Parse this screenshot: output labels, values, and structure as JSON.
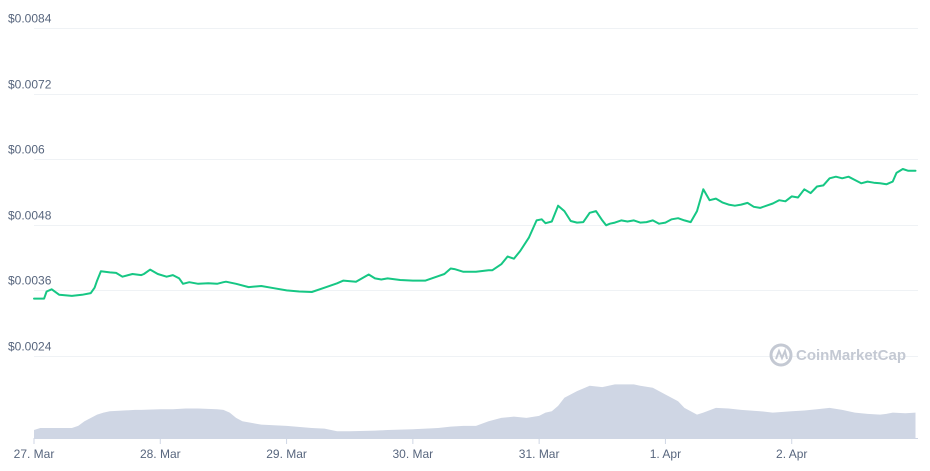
{
  "watermark": {
    "text": "CoinMarketCap"
  },
  "chart_data": {
    "type": "line",
    "title": "",
    "xlabel": "",
    "ylabel": "",
    "y_ticks": [
      0.0024,
      0.0036,
      0.0048,
      0.006,
      0.0072,
      0.0084
    ],
    "y_tick_labels": [
      "$0.0024",
      "$0.0036",
      "$0.0048",
      "$0.006",
      "$0.0072",
      "$0.0084"
    ],
    "ylim": [
      0.0024,
      0.0084
    ],
    "x_ticks": [
      "27. Mar",
      "28. Mar",
      "29. Mar",
      "30. Mar",
      "31. Mar",
      "1. Apr",
      "2. Apr"
    ],
    "xlim": [
      0,
      7.0
    ],
    "grid": true,
    "legend": "none",
    "colors": {
      "line": "#16c784",
      "volume": "#cfd6e4",
      "grid": "#eff2f5",
      "axis_text": "#58667e"
    },
    "series": [
      {
        "x": [
          0,
          0.08,
          0.1,
          0.14,
          0.2,
          0.3,
          0.38,
          0.45,
          0.48,
          0.5,
          0.53,
          0.6,
          0.65,
          0.7,
          0.78,
          0.85,
          0.87,
          0.92,
          0.98,
          1.05,
          1.1,
          1.15,
          1.18,
          1.23,
          1.3,
          1.38,
          1.45,
          1.5,
          1.52,
          1.6,
          1.7,
          1.8,
          1.9,
          2.0,
          2.1,
          2.2,
          2.3,
          2.4,
          2.45,
          2.55,
          2.65,
          2.7,
          2.75,
          2.8,
          2.9,
          3.0,
          3.1,
          3.2,
          3.25,
          3.3,
          3.33,
          3.4,
          3.5,
          3.6,
          3.63,
          3.7,
          3.75,
          3.8,
          3.85,
          3.92,
          3.98,
          4.02,
          4.05,
          4.1,
          4.15,
          4.2,
          4.25,
          4.3,
          4.35,
          4.4,
          4.45,
          4.5,
          4.53,
          4.56,
          4.6,
          4.65,
          4.7,
          4.75,
          4.8,
          4.85,
          4.9,
          4.95,
          5.0,
          5.05,
          5.1,
          5.15,
          5.2,
          5.25,
          5.3,
          5.35,
          5.4,
          5.45,
          5.5,
          5.55,
          5.6,
          5.65,
          5.7,
          5.75,
          5.8,
          5.85,
          5.9,
          5.95,
          6.0,
          6.05,
          6.1,
          6.15,
          6.2,
          6.25,
          6.3,
          6.35,
          6.4,
          6.45,
          6.5,
          6.55,
          6.6,
          6.65,
          6.7,
          6.75,
          6.8,
          6.83,
          6.88,
          6.92,
          6.98
        ],
        "values": [
          0.00345,
          0.00345,
          0.00358,
          0.00362,
          0.00352,
          0.0035,
          0.00352,
          0.00355,
          0.00365,
          0.00378,
          0.00395,
          0.00393,
          0.00392,
          0.00385,
          0.0039,
          0.00388,
          0.0039,
          0.00398,
          0.0039,
          0.00385,
          0.00388,
          0.00382,
          0.00372,
          0.00375,
          0.00372,
          0.00373,
          0.00372,
          0.00375,
          0.00376,
          0.00372,
          0.00366,
          0.00368,
          0.00364,
          0.0036,
          0.00358,
          0.00357,
          0.00365,
          0.00373,
          0.00378,
          0.00376,
          0.00389,
          0.00382,
          0.0038,
          0.00382,
          0.00379,
          0.00378,
          0.00378,
          0.00386,
          0.0039,
          0.004,
          0.00399,
          0.00394,
          0.00394,
          0.00397,
          0.00397,
          0.00408,
          0.00422,
          0.00418,
          0.00432,
          0.00457,
          0.00488,
          0.0049,
          0.00483,
          0.00486,
          0.00515,
          0.00505,
          0.00487,
          0.00484,
          0.00485,
          0.00502,
          0.00505,
          0.00488,
          0.00479,
          0.00482,
          0.00484,
          0.00488,
          0.00486,
          0.00488,
          0.00484,
          0.00485,
          0.00488,
          0.00482,
          0.00484,
          0.0049,
          0.00492,
          0.00488,
          0.00485,
          0.00505,
          0.00545,
          0.00525,
          0.00528,
          0.00521,
          0.00517,
          0.00515,
          0.00517,
          0.0052,
          0.00513,
          0.00511,
          0.00515,
          0.00519,
          0.00525,
          0.00523,
          0.00532,
          0.0053,
          0.00545,
          0.00538,
          0.0055,
          0.00552,
          0.00565,
          0.00568,
          0.00565,
          0.00568,
          0.00562,
          0.00556,
          0.00559,
          0.00557,
          0.00556,
          0.00554,
          0.00559,
          0.00575,
          0.00582,
          0.00579,
          0.00579
        ]
      }
    ],
    "volume": {
      "x": [
        0,
        0.05,
        0.1,
        0.3,
        0.35,
        0.4,
        0.5,
        0.55,
        0.6,
        0.8,
        0.85,
        1.0,
        1.05,
        1.1,
        1.2,
        1.3,
        1.45,
        1.5,
        1.55,
        1.6,
        1.65,
        1.8,
        2.0,
        2.2,
        2.3,
        2.4,
        2.5,
        2.7,
        2.8,
        3.0,
        3.2,
        3.3,
        3.4,
        3.5,
        3.6,
        3.7,
        3.8,
        3.9,
        4.0,
        4.05,
        4.1,
        4.15,
        4.2,
        4.3,
        4.4,
        4.5,
        4.6,
        4.75,
        4.8,
        4.9,
        5.0,
        5.1,
        5.15,
        5.2,
        5.25,
        5.3,
        5.4,
        5.5,
        5.6,
        5.75,
        5.85,
        6.0,
        6.1,
        6.2,
        6.3,
        6.4,
        6.5,
        6.6,
        6.7,
        6.75,
        6.8,
        6.9,
        6.98
      ],
      "values": [
        0.12,
        0.15,
        0.15,
        0.15,
        0.18,
        0.25,
        0.35,
        0.38,
        0.4,
        0.42,
        0.42,
        0.43,
        0.43,
        0.43,
        0.44,
        0.44,
        0.43,
        0.42,
        0.38,
        0.3,
        0.25,
        0.2,
        0.18,
        0.15,
        0.14,
        0.1,
        0.1,
        0.11,
        0.12,
        0.13,
        0.15,
        0.17,
        0.18,
        0.18,
        0.25,
        0.3,
        0.32,
        0.3,
        0.33,
        0.38,
        0.4,
        0.48,
        0.6,
        0.7,
        0.78,
        0.76,
        0.8,
        0.8,
        0.78,
        0.75,
        0.65,
        0.55,
        0.45,
        0.4,
        0.35,
        0.38,
        0.45,
        0.44,
        0.42,
        0.4,
        0.38,
        0.4,
        0.41,
        0.43,
        0.45,
        0.42,
        0.38,
        0.36,
        0.35,
        0.36,
        0.38,
        0.37,
        0.38
      ]
    }
  }
}
